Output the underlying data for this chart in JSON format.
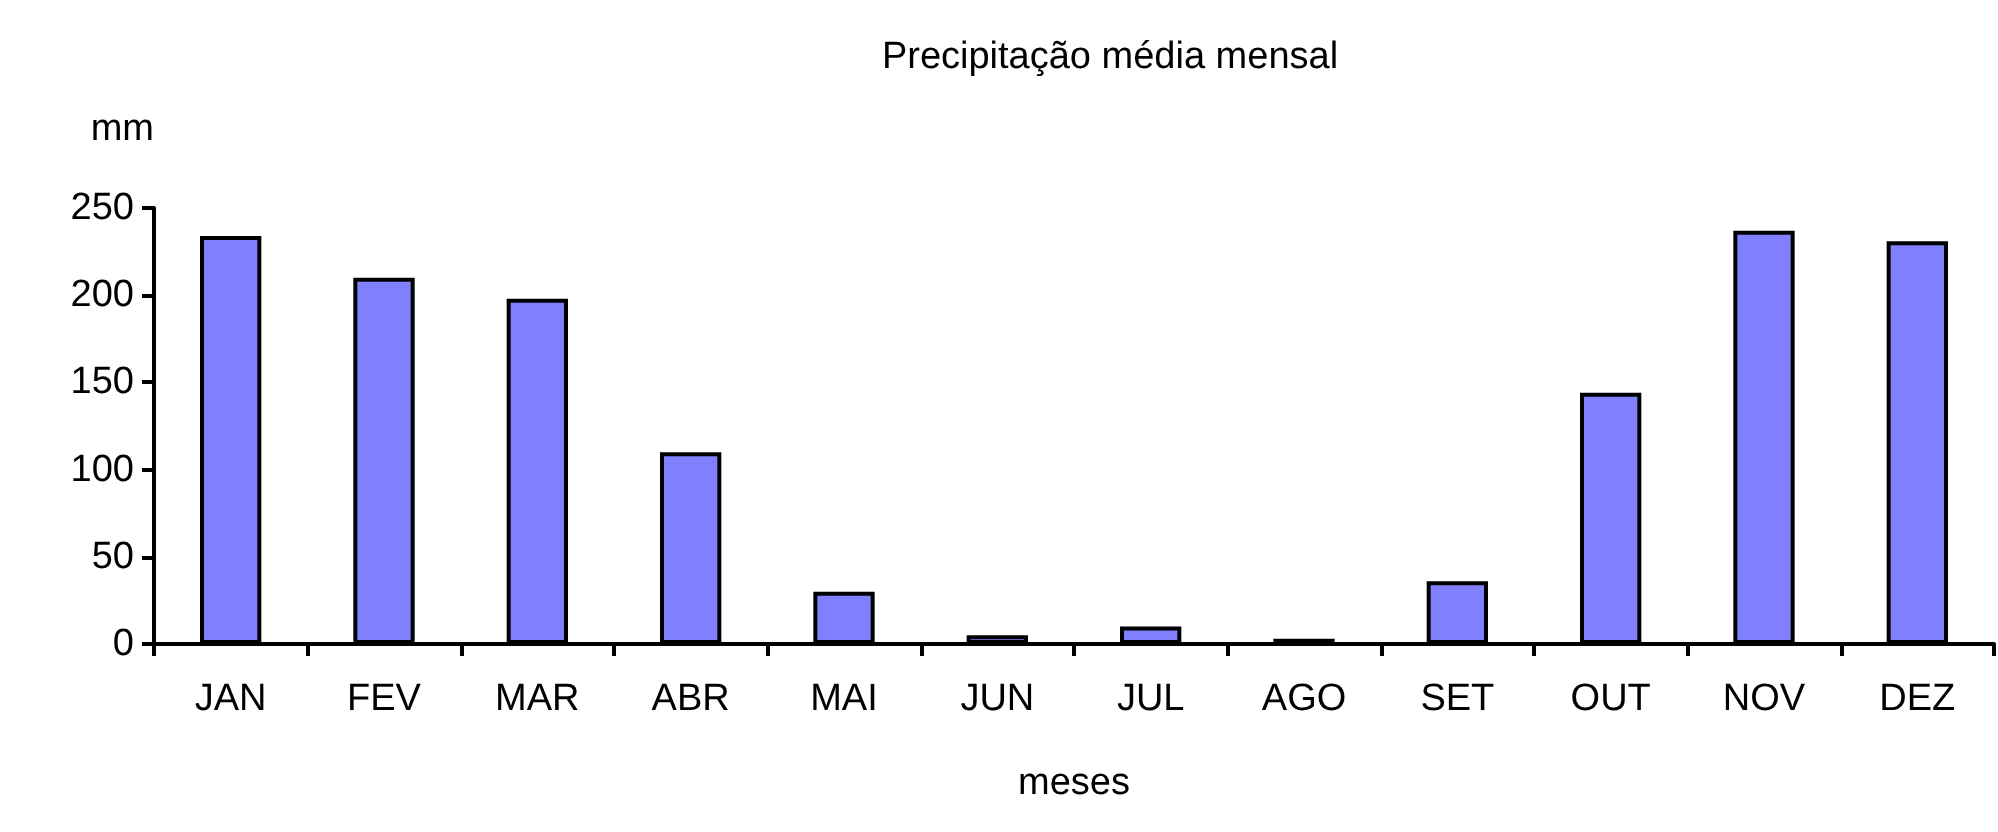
{
  "chart_data": {
    "type": "bar",
    "title": "Precipitação média mensal",
    "xlabel": "meses",
    "ylabel": "mm",
    "categories": [
      "JAN",
      "FEV",
      "MAR",
      "ABR",
      "MAI",
      "JUN",
      "JUL",
      "AGO",
      "SET",
      "OUT",
      "NOV",
      "DEZ"
    ],
    "values": [
      234,
      210,
      198,
      110,
      30,
      5,
      10,
      3,
      36,
      144,
      237,
      231
    ],
    "color": "#8080ff",
    "ylim": [
      0,
      250
    ],
    "yticks": [
      0,
      50,
      100,
      150,
      200,
      250
    ],
    "grid": false
  }
}
